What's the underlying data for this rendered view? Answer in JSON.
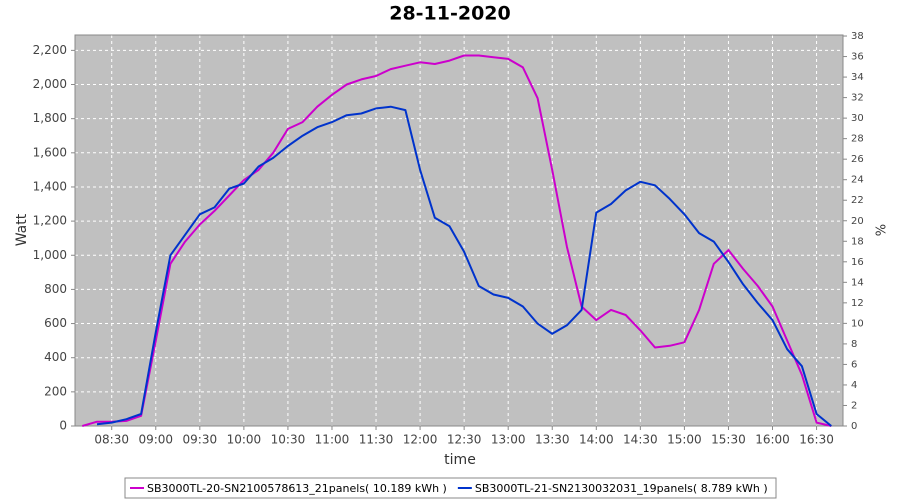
{
  "chart_data": {
    "type": "line",
    "title": "28-11-2020",
    "x_label": "time",
    "y_label": "Watt",
    "y2_label": "%",
    "x": [
      "08:10",
      "08:20",
      "08:30",
      "08:40",
      "08:50",
      "09:00",
      "09:10",
      "09:20",
      "09:30",
      "09:40",
      "09:50",
      "10:00",
      "10:10",
      "10:20",
      "10:30",
      "10:40",
      "10:50",
      "11:00",
      "11:10",
      "11:20",
      "11:30",
      "11:40",
      "11:50",
      "12:00",
      "12:10",
      "12:20",
      "12:30",
      "12:40",
      "12:50",
      "13:00",
      "13:10",
      "13:20",
      "13:30",
      "13:40",
      "13:50",
      "14:00",
      "14:10",
      "14:20",
      "14:30",
      "14:40",
      "14:50",
      "15:00",
      "15:10",
      "15:20",
      "15:30",
      "15:40",
      "15:50",
      "16:00",
      "16:10",
      "16:20",
      "16:30",
      "16:40"
    ],
    "xlim": [
      "08:05",
      "16:48"
    ],
    "xticks": [
      "08:30",
      "09:00",
      "09:30",
      "10:00",
      "10:30",
      "11:00",
      "11:30",
      "12:00",
      "12:30",
      "13:00",
      "13:30",
      "14:00",
      "14:30",
      "15:00",
      "15:30",
      "16:00",
      "16:30"
    ],
    "ylim": [
      0,
      2290
    ],
    "yticks": [
      0,
      200,
      400,
      600,
      800,
      {
        "value": 1000,
        "label": "1,000"
      },
      {
        "value": 1200,
        "label": "1,200"
      },
      {
        "value": 1400,
        "label": "1,400"
      },
      {
        "value": 1600,
        "label": "1,600"
      },
      {
        "value": 1800,
        "label": "1,800"
      },
      {
        "value": 2000,
        "label": "2,000"
      },
      {
        "value": 2200,
        "label": "2,200"
      }
    ],
    "y2lim": [
      0,
      38.1
    ],
    "y2ticks": [
      0,
      2,
      4,
      6,
      8,
      10,
      12,
      14,
      16,
      18,
      20,
      22,
      24,
      26,
      28,
      30,
      32,
      34,
      36,
      38
    ],
    "grid": true,
    "series": [
      {
        "name": "SB3000TL-20-SN2100578613_21panels( 10.189 kWh )",
        "color": "#cc00cc",
        "values": [
          0,
          25,
          25,
          30,
          60,
          500,
          950,
          1080,
          1180,
          1260,
          1350,
          1440,
          1500,
          1600,
          1740,
          1780,
          1870,
          1940,
          2000,
          2030,
          2050,
          2090,
          2110,
          2130,
          2120,
          2140,
          2170,
          2170,
          2160,
          2150,
          2100,
          1920,
          1500,
          1050,
          700,
          620,
          680,
          650,
          560,
          460,
          470,
          490,
          680,
          950,
          1030,
          920,
          820,
          700,
          500,
          300,
          20,
          0
        ]
      },
      {
        "name": "SB3000TL-21-SN2130032031_19panels( 8.789 kWh )",
        "color": "#0033cc",
        "values": [
          null,
          10,
          20,
          40,
          70,
          550,
          1000,
          1120,
          1240,
          1280,
          1390,
          1420,
          1520,
          1570,
          1640,
          1700,
          1750,
          1780,
          1820,
          1830,
          1860,
          1870,
          1850,
          1500,
          1220,
          1170,
          1020,
          820,
          770,
          750,
          700,
          600,
          540,
          590,
          680,
          1250,
          1300,
          1380,
          1430,
          1410,
          1330,
          1240,
          1130,
          1080,
          960,
          830,
          720,
          620,
          450,
          350,
          70,
          0
        ]
      }
    ]
  }
}
